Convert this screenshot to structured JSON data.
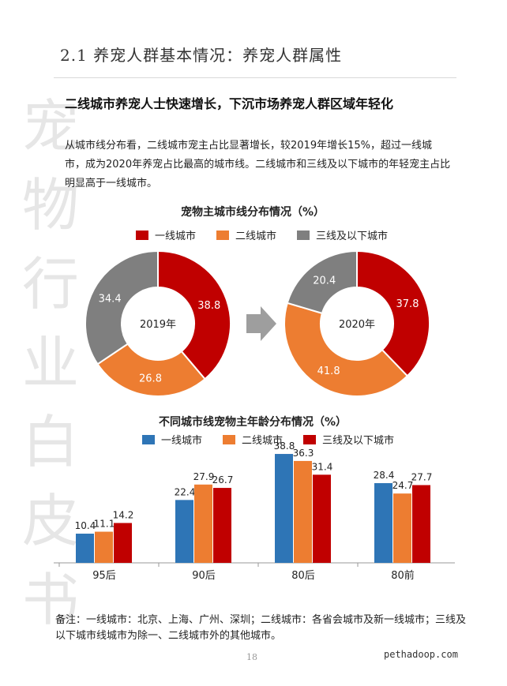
{
  "watermark": [
    "宠",
    "物",
    "行",
    "业",
    "白",
    "皮",
    "书"
  ],
  "section_title": "2.1 养宠人群基本情况：养宠人群属性",
  "subtitle": "二线城市养宠人士快速增长，下沉市场养宠人群区域年轻化",
  "paragraph": "从城市线分布看，二线城市宠主占比显著增长，较2019年增长15%，超过一线城市，成为2020年养宠占比最高的城市线。二线城市和三线及以下城市的年轻宠主占比明显高于一线城市。",
  "colors": {
    "red": "#c00000",
    "orange": "#ed7d31",
    "gray": "#7f7f7f",
    "blue": "#2e75b6",
    "arrow": "#9e9e9e"
  },
  "chart_data": [
    {
      "type": "pie",
      "title": "宠物主城市线分布情况（%）",
      "legend": [
        "一线城市",
        "二线城市",
        "三线及以下城市"
      ],
      "charts": [
        {
          "center_label": "2019年",
          "values": [
            38.8,
            26.8,
            34.4
          ]
        },
        {
          "center_label": "2020年",
          "values": [
            37.8,
            41.8,
            20.4
          ]
        }
      ]
    },
    {
      "type": "bar",
      "title": "不同城市线宠物主年龄分布情况（%）",
      "categories": [
        "95后",
        "90后",
        "80后",
        "80前"
      ],
      "series": [
        {
          "name": "一线城市",
          "values": [
            10.4,
            22.4,
            38.8,
            28.4
          ]
        },
        {
          "name": "二线城市",
          "values": [
            11.1,
            27.9,
            36.3,
            24.7
          ]
        },
        {
          "name": "三线及以下城市",
          "values": [
            14.2,
            26.7,
            31.4,
            27.7
          ]
        }
      ],
      "ylim": [
        0,
        45
      ]
    }
  ],
  "footnote": "备注：一线城市：北京、上海、广州、深圳；二线城市：各省会城市及新一线城市；三线及以下城市线城市为除一、二线城市外的其他城市。",
  "page_number": "18",
  "website": "pethadoop.com"
}
